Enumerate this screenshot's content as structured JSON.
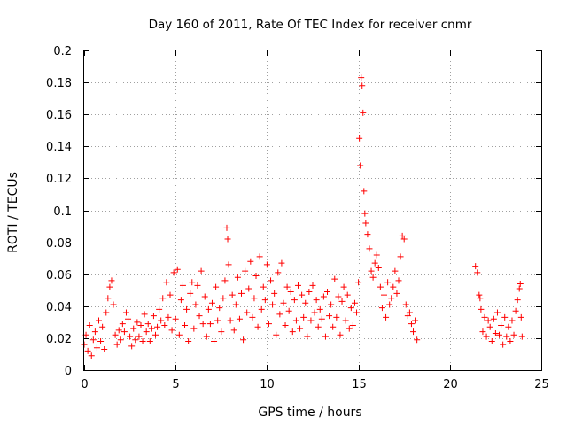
{
  "chart_data": {
    "type": "scatter",
    "title": "Day 160 of 2011, Rate Of TEC Index for receiver cnmr",
    "xlabel": "GPS time / hours",
    "ylabel": "ROTI / TECUs",
    "xlim": [
      0,
      25
    ],
    "ylim": [
      0,
      0.2
    ],
    "x_ticks": [
      "0",
      "5",
      "10",
      "15",
      "20",
      "25"
    ],
    "y_ticks": [
      "0",
      "0.02",
      "0.04",
      "0.06",
      "0.08",
      "0.1",
      "0.12",
      "0.14",
      "0.16",
      "0.18",
      "0.2"
    ],
    "grid": true,
    "marker": "plus",
    "color": "#ff0000",
    "series": [
      {
        "points": [
          [
            0.0,
            0.016
          ],
          [
            0.1,
            0.022
          ],
          [
            0.2,
            0.012
          ],
          [
            0.3,
            0.028
          ],
          [
            0.4,
            0.009
          ],
          [
            0.5,
            0.019
          ],
          [
            0.6,
            0.024
          ],
          [
            0.7,
            0.014
          ],
          [
            0.8,
            0.031
          ],
          [
            0.9,
            0.018
          ],
          [
            1.0,
            0.027
          ],
          [
            1.1,
            0.013
          ],
          [
            1.2,
            0.036
          ],
          [
            1.3,
            0.045
          ],
          [
            1.4,
            0.052
          ],
          [
            1.5,
            0.056
          ],
          [
            1.6,
            0.041
          ],
          [
            1.7,
            0.022
          ],
          [
            1.8,
            0.016
          ],
          [
            1.9,
            0.025
          ],
          [
            2.0,
            0.019
          ],
          [
            2.1,
            0.029
          ],
          [
            2.2,
            0.024
          ],
          [
            2.3,
            0.036
          ],
          [
            2.4,
            0.032
          ],
          [
            2.5,
            0.021
          ],
          [
            2.6,
            0.015
          ],
          [
            2.7,
            0.026
          ],
          [
            2.8,
            0.019
          ],
          [
            2.9,
            0.03
          ],
          [
            3.0,
            0.021
          ],
          [
            3.1,
            0.028
          ],
          [
            3.2,
            0.018
          ],
          [
            3.3,
            0.035
          ],
          [
            3.4,
            0.024
          ],
          [
            3.5,
            0.029
          ],
          [
            3.6,
            0.018
          ],
          [
            3.7,
            0.026
          ],
          [
            3.8,
            0.034
          ],
          [
            3.9,
            0.022
          ],
          [
            4.0,
            0.027
          ],
          [
            4.1,
            0.038
          ],
          [
            4.2,
            0.031
          ],
          [
            4.3,
            0.045
          ],
          [
            4.4,
            0.028
          ],
          [
            4.5,
            0.055
          ],
          [
            4.6,
            0.033
          ],
          [
            4.7,
            0.047
          ],
          [
            4.8,
            0.025
          ],
          [
            4.9,
            0.061
          ],
          [
            5.0,
            0.032
          ],
          [
            5.1,
            0.063
          ],
          [
            5.2,
            0.022
          ],
          [
            5.3,
            0.044
          ],
          [
            5.4,
            0.053
          ],
          [
            5.5,
            0.028
          ],
          [
            5.6,
            0.038
          ],
          [
            5.7,
            0.018
          ],
          [
            5.8,
            0.048
          ],
          [
            5.9,
            0.055
          ],
          [
            6.0,
            0.026
          ],
          [
            6.1,
            0.041
          ],
          [
            6.2,
            0.053
          ],
          [
            6.3,
            0.034
          ],
          [
            6.4,
            0.062
          ],
          [
            6.5,
            0.029
          ],
          [
            6.6,
            0.046
          ],
          [
            6.7,
            0.021
          ],
          [
            6.8,
            0.038
          ],
          [
            6.9,
            0.029
          ],
          [
            7.0,
            0.042
          ],
          [
            7.1,
            0.018
          ],
          [
            7.2,
            0.052
          ],
          [
            7.3,
            0.031
          ],
          [
            7.4,
            0.039
          ],
          [
            7.5,
            0.024
          ],
          [
            7.6,
            0.045
          ],
          [
            7.7,
            0.056
          ],
          [
            7.8,
            0.089
          ],
          [
            7.85,
            0.082
          ],
          [
            7.9,
            0.066
          ],
          [
            8.0,
            0.031
          ],
          [
            8.1,
            0.047
          ],
          [
            8.2,
            0.025
          ],
          [
            8.3,
            0.041
          ],
          [
            8.4,
            0.058
          ],
          [
            8.5,
            0.032
          ],
          [
            8.6,
            0.048
          ],
          [
            8.7,
            0.019
          ],
          [
            8.8,
            0.062
          ],
          [
            8.9,
            0.036
          ],
          [
            9.0,
            0.051
          ],
          [
            9.1,
            0.068
          ],
          [
            9.2,
            0.033
          ],
          [
            9.3,
            0.045
          ],
          [
            9.4,
            0.059
          ],
          [
            9.5,
            0.027
          ],
          [
            9.6,
            0.071
          ],
          [
            9.7,
            0.038
          ],
          [
            9.8,
            0.052
          ],
          [
            9.9,
            0.044
          ],
          [
            10.0,
            0.066
          ],
          [
            10.1,
            0.029
          ],
          [
            10.2,
            0.056
          ],
          [
            10.3,
            0.041
          ],
          [
            10.4,
            0.048
          ],
          [
            10.5,
            0.022
          ],
          [
            10.6,
            0.061
          ],
          [
            10.7,
            0.035
          ],
          [
            10.8,
            0.067
          ],
          [
            10.9,
            0.042
          ],
          [
            11.0,
            0.028
          ],
          [
            11.1,
            0.052
          ],
          [
            11.2,
            0.037
          ],
          [
            11.3,
            0.049
          ],
          [
            11.4,
            0.024
          ],
          [
            11.5,
            0.044
          ],
          [
            11.6,
            0.031
          ],
          [
            11.7,
            0.053
          ],
          [
            11.8,
            0.026
          ],
          [
            11.9,
            0.047
          ],
          [
            12.0,
            0.033
          ],
          [
            12.1,
            0.042
          ],
          [
            12.2,
            0.021
          ],
          [
            12.3,
            0.049
          ],
          [
            12.4,
            0.031
          ],
          [
            12.5,
            0.053
          ],
          [
            12.6,
            0.036
          ],
          [
            12.7,
            0.044
          ],
          [
            12.8,
            0.027
          ],
          [
            12.9,
            0.038
          ],
          [
            13.0,
            0.032
          ],
          [
            13.1,
            0.046
          ],
          [
            13.2,
            0.021
          ],
          [
            13.3,
            0.049
          ],
          [
            13.4,
            0.034
          ],
          [
            13.5,
            0.041
          ],
          [
            13.6,
            0.027
          ],
          [
            13.7,
            0.057
          ],
          [
            13.8,
            0.033
          ],
          [
            13.9,
            0.046
          ],
          [
            14.0,
            0.022
          ],
          [
            14.1,
            0.043
          ],
          [
            14.2,
            0.052
          ],
          [
            14.3,
            0.031
          ],
          [
            14.4,
            0.047
          ],
          [
            14.5,
            0.026
          ],
          [
            14.6,
            0.039
          ],
          [
            14.7,
            0.028
          ],
          [
            14.8,
            0.042
          ],
          [
            14.9,
            0.036
          ],
          [
            15.0,
            0.055
          ],
          [
            15.05,
            0.145
          ],
          [
            15.1,
            0.128
          ],
          [
            15.15,
            0.183
          ],
          [
            15.2,
            0.178
          ],
          [
            15.25,
            0.161
          ],
          [
            15.3,
            0.112
          ],
          [
            15.35,
            0.098
          ],
          [
            15.4,
            0.092
          ],
          [
            15.5,
            0.085
          ],
          [
            15.6,
            0.076
          ],
          [
            15.7,
            0.062
          ],
          [
            15.8,
            0.058
          ],
          [
            15.9,
            0.067
          ],
          [
            16.0,
            0.072
          ],
          [
            16.1,
            0.064
          ],
          [
            16.2,
            0.052
          ],
          [
            16.3,
            0.039
          ],
          [
            16.4,
            0.047
          ],
          [
            16.5,
            0.033
          ],
          [
            16.6,
            0.055
          ],
          [
            16.7,
            0.041
          ],
          [
            16.8,
            0.045
          ],
          [
            16.9,
            0.052
          ],
          [
            17.0,
            0.062
          ],
          [
            17.1,
            0.048
          ],
          [
            17.2,
            0.056
          ],
          [
            17.3,
            0.071
          ],
          [
            17.4,
            0.084
          ],
          [
            17.5,
            0.082
          ],
          [
            17.6,
            0.041
          ],
          [
            17.7,
            0.034
          ],
          [
            17.8,
            0.036
          ],
          [
            17.9,
            0.029
          ],
          [
            18.0,
            0.024
          ],
          [
            18.1,
            0.031
          ],
          [
            18.2,
            0.019
          ],
          [
            21.4,
            0.065
          ],
          [
            21.5,
            0.061
          ],
          [
            21.6,
            0.047
          ],
          [
            21.65,
            0.045
          ],
          [
            21.7,
            0.038
          ],
          [
            21.8,
            0.024
          ],
          [
            21.9,
            0.033
          ],
          [
            22.0,
            0.021
          ],
          [
            22.1,
            0.031
          ],
          [
            22.2,
            0.027
          ],
          [
            22.3,
            0.018
          ],
          [
            22.4,
            0.032
          ],
          [
            22.5,
            0.023
          ],
          [
            22.6,
            0.036
          ],
          [
            22.7,
            0.022
          ],
          [
            22.8,
            0.028
          ],
          [
            22.9,
            0.016
          ],
          [
            23.0,
            0.033
          ],
          [
            23.1,
            0.021
          ],
          [
            23.2,
            0.027
          ],
          [
            23.3,
            0.018
          ],
          [
            23.4,
            0.031
          ],
          [
            23.5,
            0.022
          ],
          [
            23.6,
            0.037
          ],
          [
            23.7,
            0.044
          ],
          [
            23.8,
            0.051
          ],
          [
            23.85,
            0.054
          ],
          [
            23.9,
            0.033
          ],
          [
            23.95,
            0.021
          ]
        ]
      }
    ]
  }
}
